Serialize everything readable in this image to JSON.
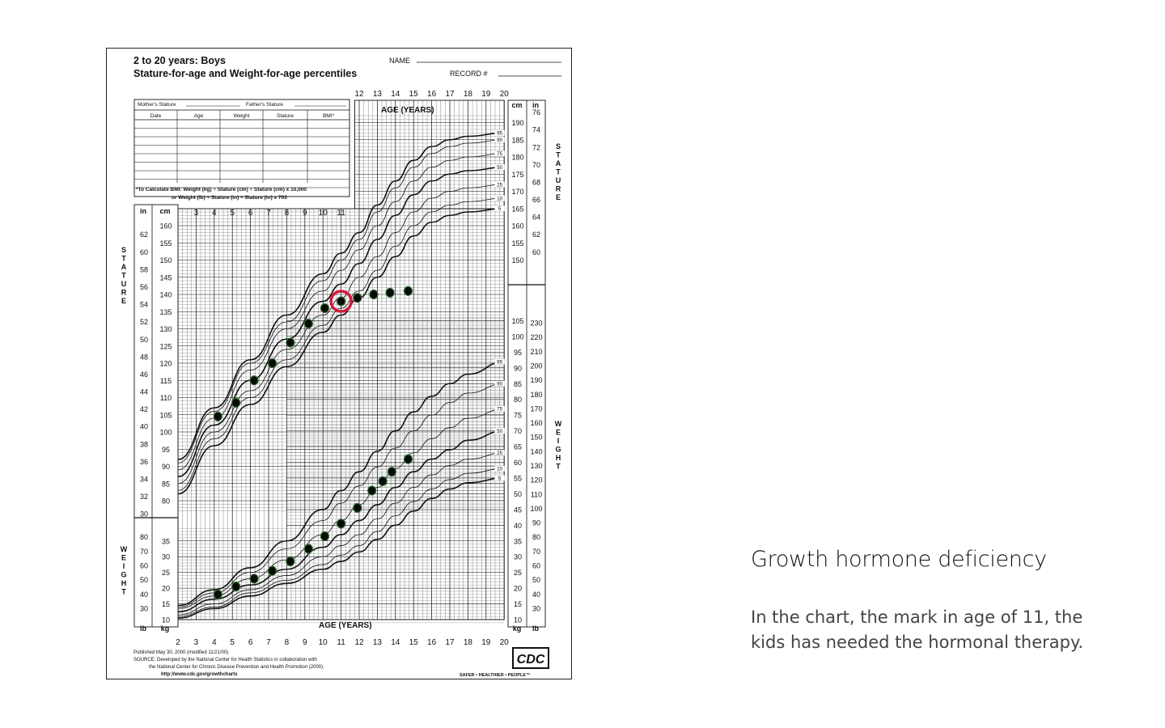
{
  "header": {
    "age_range": "2 to 20 years: Boys",
    "subtitle": "Stature-for-age and Weight-for-age percentiles",
    "name_label": "NAME",
    "record_label": "RECORD #"
  },
  "record_table": {
    "mother_label": "Mother's Stature",
    "father_label": "Father's Stature",
    "columns": [
      "Date",
      "Age",
      "Weight",
      "Stature",
      "BMI*"
    ],
    "bmi_note_1": "*To Calculate BMI: Weight (kg) ÷ Stature (cm) ÷ Stature (cm) x 10,000",
    "bmi_note_2": "or Weight (lb) ÷ Stature (in) ÷ Stature (in) x 703"
  },
  "chart_data": {
    "type": "line",
    "xlabel": "AGE (YEARS)",
    "xlim": [
      2,
      20
    ],
    "x_ticks": [
      2,
      3,
      4,
      5,
      6,
      7,
      8,
      9,
      10,
      11,
      12,
      13,
      14,
      15,
      16,
      17,
      18,
      19,
      20
    ],
    "stature": {
      "label": "STATURE",
      "unit_left": "cm",
      "unit_inch": "in",
      "ylim": [
        77,
        192
      ],
      "cm_ticks_left": [
        80,
        85,
        90,
        95,
        100,
        105,
        110,
        115,
        120,
        125,
        130,
        135,
        140,
        145,
        150,
        155,
        160
      ],
      "cm_ticks_right": [
        150,
        155,
        160,
        165,
        170,
        175,
        180,
        185,
        190
      ],
      "in_ticks_left": [
        30,
        32,
        34,
        36,
        38,
        40,
        42,
        44,
        46,
        48,
        50,
        52,
        54,
        56,
        58,
        60,
        62
      ],
      "in_ticks_right": [
        60,
        62,
        64,
        66,
        68,
        70,
        72,
        74,
        76
      ],
      "series": [
        {
          "name": "5",
          "x": [
            2,
            4,
            6,
            8,
            10,
            11,
            12,
            13,
            14,
            15,
            16,
            17,
            18,
            20
          ],
          "y": [
            82,
            96,
            108,
            119,
            129,
            134,
            139,
            145,
            151,
            157,
            161,
            163,
            164,
            165
          ]
        },
        {
          "name": "10",
          "x": [
            2,
            4,
            6,
            8,
            10,
            11,
            12,
            13,
            14,
            15,
            16,
            17,
            18,
            20
          ],
          "y": [
            83,
            98,
            110,
            121,
            131,
            136,
            141,
            147,
            154,
            160,
            164,
            166,
            167,
            168
          ]
        },
        {
          "name": "25",
          "x": [
            2,
            4,
            6,
            8,
            10,
            11,
            12,
            13,
            14,
            15,
            16,
            17,
            18,
            20
          ],
          "y": [
            85,
            100,
            112,
            124,
            134,
            139,
            145,
            151,
            158,
            164,
            168,
            170,
            171,
            172
          ]
        },
        {
          "name": "50",
          "x": [
            2,
            4,
            6,
            8,
            10,
            11,
            12,
            13,
            14,
            15,
            16,
            17,
            18,
            20
          ],
          "y": [
            87,
            102,
            115,
            127,
            138,
            143,
            149,
            156,
            163,
            169,
            173,
            175,
            176,
            177
          ]
        },
        {
          "name": "75",
          "x": [
            2,
            4,
            6,
            8,
            10,
            11,
            12,
            13,
            14,
            15,
            16,
            17,
            18,
            20
          ],
          "y": [
            89,
            104,
            118,
            130,
            141,
            147,
            153,
            160,
            167,
            173,
            177,
            179,
            180,
            181
          ]
        },
        {
          "name": "90",
          "x": [
            2,
            4,
            6,
            8,
            10,
            11,
            12,
            13,
            14,
            15,
            16,
            17,
            18,
            20
          ],
          "y": [
            91,
            106,
            120,
            132,
            144,
            150,
            156,
            164,
            171,
            177,
            181,
            183,
            184,
            185
          ]
        },
        {
          "name": "95",
          "x": [
            2,
            4,
            6,
            8,
            10,
            11,
            12,
            13,
            14,
            15,
            16,
            17,
            18,
            20
          ],
          "y": [
            92,
            107,
            121,
            134,
            146,
            152,
            158,
            166,
            173,
            179,
            183,
            185,
            186,
            187
          ]
        }
      ],
      "patient": {
        "x": [
          4.2,
          5.2,
          6.2,
          7.2,
          8.2,
          9.2,
          10.1,
          11,
          11.9,
          12.8,
          13.7,
          14.7
        ],
        "y": [
          104.5,
          108.5,
          115,
          120,
          126,
          131.5,
          136,
          138,
          139,
          140,
          140.5,
          141
        ]
      }
    },
    "weight": {
      "label": "WEIGHT",
      "unit_left": "kg",
      "unit_lb": "lb",
      "ylim": [
        7,
        110
      ],
      "kg_ticks_left": [
        10,
        15,
        20,
        25,
        30,
        35
      ],
      "kg_ticks_right": [
        10,
        15,
        20,
        25,
        30,
        35,
        40,
        45,
        50,
        55,
        60,
        65,
        70,
        75,
        80,
        85,
        90,
        95,
        100,
        105
      ],
      "lb_ticks_left": [
        30,
        40,
        50,
        60,
        70,
        80
      ],
      "lb_ticks_right": [
        30,
        40,
        50,
        60,
        70,
        80,
        90,
        100,
        110,
        120,
        130,
        140,
        150,
        160,
        170,
        180,
        190,
        200,
        210,
        220,
        230
      ],
      "series": [
        {
          "name": "5",
          "x": [
            2,
            4,
            6,
            8,
            10,
            11,
            12,
            13,
            14,
            15,
            16,
            17,
            18,
            20
          ],
          "y": [
            10.5,
            13.5,
            17.5,
            21.5,
            26,
            28.5,
            31.5,
            35.5,
            40,
            44.5,
            48.5,
            51.5,
            53.5,
            55
          ]
        },
        {
          "name": "10",
          "x": [
            2,
            4,
            6,
            8,
            10,
            11,
            12,
            13,
            14,
            15,
            16,
            17,
            18,
            20
          ],
          "y": [
            11,
            14,
            18.5,
            22.5,
            27.5,
            30.5,
            33.5,
            38,
            43,
            47.5,
            51.5,
            54.5,
            56.5,
            58
          ]
        },
        {
          "name": "25",
          "x": [
            2,
            4,
            6,
            8,
            10,
            11,
            12,
            13,
            14,
            15,
            16,
            17,
            18,
            20
          ],
          "y": [
            11.5,
            15,
            19.5,
            24,
            30,
            33.5,
            37,
            42,
            47,
            52,
            56,
            59,
            61,
            63
          ]
        },
        {
          "name": "50",
          "x": [
            2,
            4,
            6,
            8,
            10,
            11,
            12,
            13,
            14,
            15,
            16,
            17,
            18,
            20
          ],
          "y": [
            12.5,
            16.5,
            21,
            26,
            33,
            37,
            41.5,
            46.5,
            52,
            57,
            61,
            64,
            67,
            70
          ]
        },
        {
          "name": "75",
          "x": [
            2,
            4,
            6,
            8,
            10,
            11,
            12,
            13,
            14,
            15,
            16,
            17,
            18,
            20
          ],
          "y": [
            13.5,
            17.5,
            23,
            29,
            37,
            41.5,
            46.5,
            52,
            58,
            63,
            67.5,
            71,
            74,
            77
          ]
        },
        {
          "name": "90",
          "x": [
            2,
            4,
            6,
            8,
            10,
            11,
            12,
            13,
            14,
            15,
            16,
            17,
            18,
            20
          ],
          "y": [
            14,
            18.5,
            25,
            32.5,
            41.5,
            47,
            52.5,
            58.5,
            64.5,
            70,
            75,
            79,
            82,
            85
          ]
        },
        {
          "name": "95",
          "x": [
            2,
            4,
            6,
            8,
            10,
            11,
            12,
            13,
            14,
            15,
            16,
            17,
            18,
            20
          ],
          "y": [
            14.5,
            19.5,
            26.5,
            35,
            45,
            51,
            57,
            63.5,
            70,
            76,
            81,
            85,
            88,
            92
          ]
        }
      ],
      "patient": {
        "x": [
          4.2,
          5.2,
          6.2,
          7.2,
          8.2,
          9.2,
          10.1,
          11,
          11.9,
          12.7,
          13.3,
          13.8,
          14.7
        ],
        "y": [
          18,
          20.5,
          23,
          25.5,
          28.5,
          32.5,
          36.5,
          40.5,
          45.5,
          51,
          54,
          57,
          61
        ]
      }
    },
    "highlight": {
      "series": "stature",
      "x": 11,
      "y": 138
    }
  },
  "footer": {
    "published": "Published May 30, 2000 (modified 11/21/00).",
    "source_1": "SOURCE: Developed by the National Center for Health Statistics in collaboration with",
    "source_2": "the National Center for Chronic Disease Prevention and Health Promotion (2000).",
    "url": "http://www.cdc.gov/growthcharts",
    "logo_text": "CDC",
    "tagline": "SAFER • HEALTHIER • PEOPLE™"
  },
  "caption": {
    "title": "Growth hormone deficiency",
    "line1": "In the chart, the mark in age of 11, the",
    "line2": "kids has needed the  hormonal therapy."
  },
  "colors": {
    "highlight": "#d21a3a",
    "marker": "#0a0a0a",
    "marker_outline": "#2e6b2e",
    "caption_body": "#444444"
  }
}
